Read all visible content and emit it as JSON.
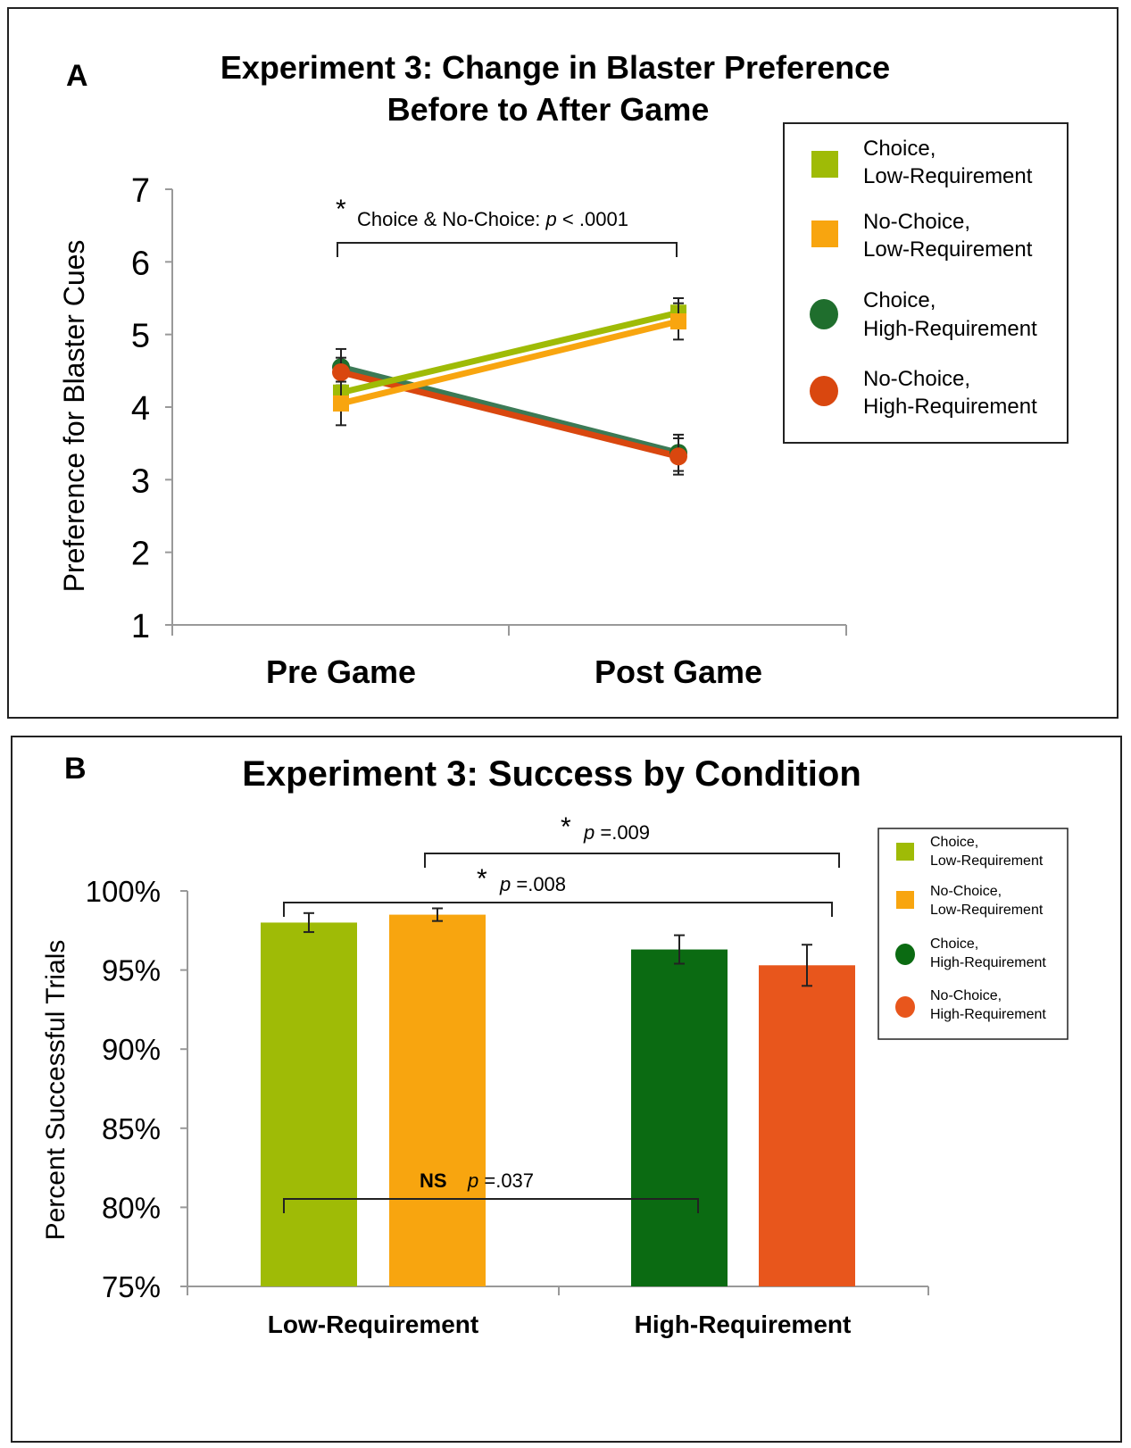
{
  "colors": {
    "choice_low": "#9fbb06",
    "nochoice_low": "#f8a50f",
    "choice_high": "#1f6e2d",
    "nochoice_high": "#d9470f",
    "choice_high_bar": "#0b6b12",
    "nochoice_high_bar": "#e8561c",
    "choice_high_line": "#3c7a56"
  },
  "chart_data": [
    {
      "panel_label": "A",
      "type": "line",
      "title_line1": "Experiment 3: Change in Blaster Preference",
      "title_line2": "Before to After Game",
      "xlabel": "",
      "ylabel": "Preference for Blaster Cues",
      "ylim": [
        1,
        7
      ],
      "yticks": [
        "1",
        "2",
        "3",
        "4",
        "5",
        "6",
        "7"
      ],
      "categories": [
        "Pre Game",
        "Post Game"
      ],
      "series": [
        {
          "name": "Choice, Low-Requirement",
          "legend_line1": "Choice,",
          "legend_line2": "Low-Requirement",
          "marker": "square",
          "values": [
            4.2,
            5.3
          ],
          "errors": [
            0.15,
            0.2
          ]
        },
        {
          "name": "No-Choice, Low-Requirement",
          "legend_line1": "No-Choice,",
          "legend_line2": "Low-Requirement",
          "marker": "square",
          "values": [
            4.05,
            5.18
          ],
          "errors": [
            0.3,
            0.25
          ]
        },
        {
          "name": "Choice, High-Requirement",
          "legend_line1": "Choice,",
          "legend_line2": "High-Requirement",
          "marker": "circle",
          "values": [
            4.55,
            3.37
          ],
          "errors": [
            0.25,
            0.25
          ]
        },
        {
          "name": "No-Choice, High-Requirement",
          "legend_line1": "No-Choice,",
          "legend_line2": "High-Requirement",
          "marker": "circle",
          "values": [
            4.48,
            3.32
          ],
          "errors": [
            0.2,
            0.25
          ]
        }
      ],
      "annotation": {
        "star": "*",
        "text": "Choice & No-Choice: ",
        "p_italic": "p",
        "p_value": " < .0001"
      },
      "legend_position": "right"
    },
    {
      "panel_label": "B",
      "type": "bar",
      "title": "Experiment 3: Success by Condition",
      "xlabel": "",
      "ylabel": "Percent Successful Trials",
      "ylim": [
        75,
        100
      ],
      "yticks": [
        "75%",
        "80%",
        "85%",
        "90%",
        "95%",
        "100%"
      ],
      "categories": [
        "Low-Requirement",
        "High-Requirement"
      ],
      "series": [
        {
          "name": "Choice, Low-Requirement",
          "legend_line1": "Choice,",
          "legend_line2": "Low-Requirement",
          "category": 0,
          "value": 98.0,
          "error": 0.6
        },
        {
          "name": "No-Choice, Low-Requirement",
          "legend_line1": "No-Choice,",
          "legend_line2": "Low-Requirement",
          "category": 0,
          "value": 98.5,
          "error": 0.4
        },
        {
          "name": "Choice, High-Requirement",
          "legend_line1": "Choice,",
          "legend_line2": "High-Requirement",
          "category": 1,
          "value": 96.3,
          "error": 0.9
        },
        {
          "name": "No-Choice, High-Requirement",
          "legend_line1": "No-Choice,",
          "legend_line2": "High-Requirement",
          "category": 1,
          "value": 95.3,
          "error": 1.3
        }
      ],
      "annotations": [
        {
          "star": "*",
          "p_italic": "p",
          "p_value": " =.009",
          "from_series": 1,
          "to_series": 3
        },
        {
          "star": "*",
          "p_italic": "p",
          "p_value": " =.008",
          "from_series": 0,
          "to_series": 3
        },
        {
          "star": "NS",
          "p_italic": "p",
          "p_value": " =.037",
          "from_series": 0,
          "to_series": 2
        }
      ],
      "legend_position": "top-right"
    }
  ]
}
